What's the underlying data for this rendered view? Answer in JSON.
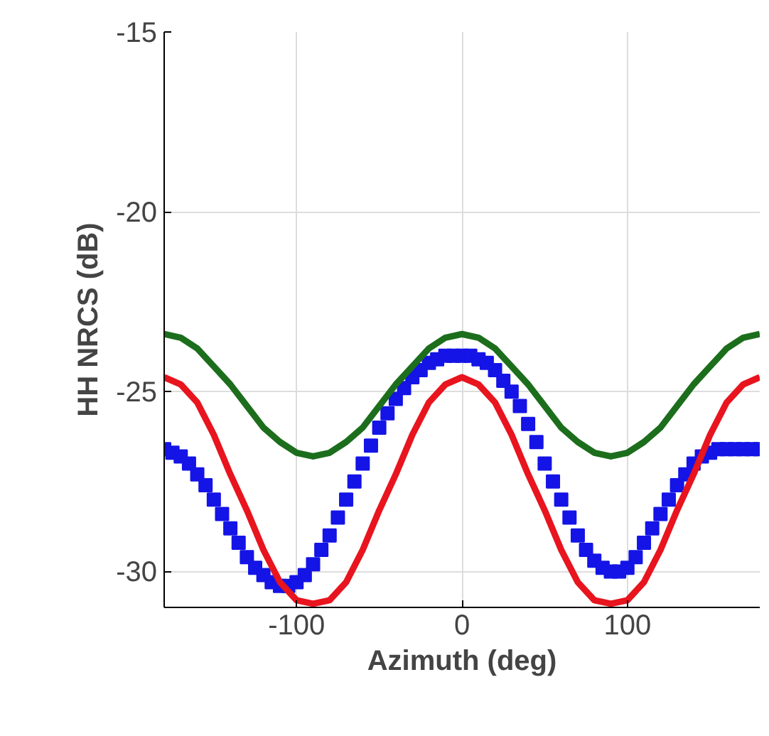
{
  "chart_data": {
    "type": "line",
    "xlabel": "Azimuth (deg)",
    "ylabel": "HH NRCS (dB)",
    "xlim": [
      -180,
      180
    ],
    "xticks": [
      -100,
      0,
      100
    ],
    "ylim": [
      -31,
      -15
    ],
    "yticks": [
      -30,
      -25,
      -20,
      -15
    ],
    "grid": true,
    "series": [
      {
        "type": "scatter",
        "marker": "square",
        "color": "#1414e6",
        "x": [
          -180,
          -175,
          -170,
          -165,
          -160,
          -155,
          -150,
          -145,
          -140,
          -135,
          -130,
          -125,
          -120,
          -115,
          -110,
          -105,
          -100,
          -95,
          -90,
          -85,
          -80,
          -75,
          -70,
          -65,
          -60,
          -55,
          -50,
          -45,
          -40,
          -35,
          -30,
          -25,
          -20,
          -15,
          -10,
          -5,
          0,
          5,
          10,
          15,
          20,
          25,
          30,
          35,
          40,
          45,
          50,
          55,
          60,
          65,
          70,
          75,
          80,
          85,
          90,
          95,
          100,
          105,
          110,
          115,
          120,
          125,
          130,
          135,
          140,
          145,
          150,
          155,
          160,
          165,
          170,
          175,
          180
        ],
        "values": [
          -26.6,
          -26.7,
          -26.8,
          -27.0,
          -27.3,
          -27.6,
          -28.0,
          -28.4,
          -28.8,
          -29.2,
          -29.6,
          -29.9,
          -30.1,
          -30.3,
          -30.4,
          -30.4,
          -30.3,
          -30.1,
          -29.8,
          -29.4,
          -29.0,
          -28.5,
          -28.0,
          -27.5,
          -27.0,
          -26.5,
          -26.0,
          -25.6,
          -25.2,
          -24.9,
          -24.6,
          -24.4,
          -24.2,
          -24.1,
          -24.0,
          -24.0,
          -24.0,
          -24.0,
          -24.1,
          -24.2,
          -24.4,
          -24.7,
          -25.0,
          -25.4,
          -25.9,
          -26.4,
          -27.0,
          -27.5,
          -28.0,
          -28.5,
          -29.0,
          -29.4,
          -29.7,
          -29.9,
          -30.0,
          -30.0,
          -29.9,
          -29.6,
          -29.2,
          -28.8,
          -28.4,
          -28.0,
          -27.6,
          -27.3,
          -27.0,
          -26.8,
          -26.7,
          -26.6,
          -26.6,
          -26.6,
          -26.6,
          -26.6,
          -26.6
        ]
      },
      {
        "color": "#e8141e",
        "x": [
          -180,
          -170,
          -160,
          -150,
          -140,
          -130,
          -120,
          -110,
          -100,
          -90,
          -80,
          -70,
          -60,
          -50,
          -40,
          -30,
          -20,
          -10,
          0,
          10,
          20,
          30,
          40,
          50,
          60,
          70,
          80,
          90,
          100,
          110,
          120,
          130,
          140,
          150,
          160,
          170,
          180
        ],
        "values": [
          -24.6,
          -24.8,
          -25.3,
          -26.2,
          -27.3,
          -28.3,
          -29.4,
          -30.3,
          -30.8,
          -30.9,
          -30.8,
          -30.3,
          -29.4,
          -28.3,
          -27.3,
          -26.2,
          -25.3,
          -24.8,
          -24.6,
          -24.8,
          -25.3,
          -26.2,
          -27.3,
          -28.3,
          -29.4,
          -30.3,
          -30.8,
          -30.9,
          -30.8,
          -30.3,
          -29.4,
          -28.3,
          -27.3,
          -26.2,
          -25.3,
          -24.8,
          -24.6
        ]
      },
      {
        "color": "#1c6e1c",
        "x": [
          -180,
          -170,
          -160,
          -150,
          -140,
          -130,
          -120,
          -110,
          -100,
          -90,
          -80,
          -70,
          -60,
          -50,
          -40,
          -30,
          -20,
          -10,
          0,
          10,
          20,
          30,
          40,
          50,
          60,
          70,
          80,
          90,
          100,
          110,
          120,
          130,
          140,
          150,
          160,
          170,
          180
        ],
        "values": [
          -23.4,
          -23.5,
          -23.8,
          -24.3,
          -24.8,
          -25.4,
          -26.0,
          -26.4,
          -26.7,
          -26.8,
          -26.7,
          -26.4,
          -26.0,
          -25.4,
          -24.8,
          -24.3,
          -23.8,
          -23.5,
          -23.4,
          -23.5,
          -23.8,
          -24.3,
          -24.8,
          -25.4,
          -26.0,
          -26.4,
          -26.7,
          -26.8,
          -26.7,
          -26.4,
          -26.0,
          -25.4,
          -24.8,
          -24.3,
          -23.8,
          -23.5,
          -23.4
        ]
      }
    ]
  }
}
